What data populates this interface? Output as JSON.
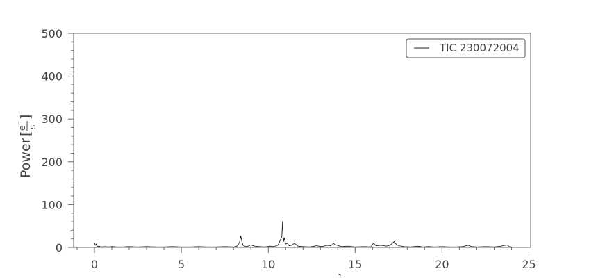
{
  "chart_data": {
    "type": "line",
    "title": "",
    "xlabel": "",
    "ylabel": "Power",
    "ylabel_unit": "e⁻/s",
    "xlim": [
      -1.2,
      25.1
    ],
    "ylim": [
      0,
      500
    ],
    "xticks": [
      0,
      5,
      10,
      15,
      20,
      25
    ],
    "yticks": [
      0,
      100,
      200,
      300,
      400,
      500
    ],
    "grid": false,
    "legend_position": "top-right",
    "series": [
      {
        "name": "TIC 230072004",
        "color": "#222222",
        "x": [
          0.0,
          0.05,
          0.1,
          0.15,
          0.25,
          0.4,
          0.6,
          0.8,
          1.0,
          1.3,
          1.6,
          2.0,
          2.5,
          3.0,
          3.5,
          4.0,
          4.5,
          5.0,
          5.5,
          6.0,
          6.5,
          7.0,
          7.5,
          8.0,
          8.2,
          8.35,
          8.42,
          8.48,
          8.55,
          8.7,
          8.85,
          9.0,
          9.2,
          9.5,
          9.8,
          10.1,
          10.3,
          10.5,
          10.6,
          10.7,
          10.78,
          10.82,
          10.85,
          10.88,
          10.92,
          11.0,
          11.1,
          11.2,
          11.35,
          11.5,
          11.7,
          12.0,
          12.4,
          12.8,
          13.0,
          13.2,
          13.4,
          13.6,
          13.75,
          13.9,
          14.2,
          14.6,
          15.0,
          15.5,
          15.9,
          16.05,
          16.2,
          16.5,
          16.8,
          17.0,
          17.15,
          17.25,
          17.35,
          17.5,
          17.8,
          18.2,
          18.6,
          18.9,
          19.2,
          19.6,
          20.0,
          20.4,
          20.8,
          21.2,
          21.5,
          21.7,
          22.0,
          22.5,
          23.0,
          23.4,
          23.75,
          23.85,
          24.0
        ],
        "y": [
          11,
          5,
          8,
          2,
          3,
          1,
          2,
          1,
          2,
          1,
          1,
          2,
          1,
          2,
          1,
          1,
          2,
          1,
          1,
          2,
          1,
          1,
          2,
          1,
          3,
          12,
          27,
          14,
          5,
          2,
          3,
          6,
          3,
          2,
          1,
          3,
          2,
          4,
          8,
          18,
          25,
          60,
          30,
          14,
          22,
          8,
          10,
          4,
          5,
          10,
          3,
          2,
          1,
          4,
          2,
          3,
          5,
          4,
          9,
          6,
          2,
          3,
          1,
          2,
          1,
          10,
          4,
          5,
          3,
          5,
          10,
          14,
          8,
          4,
          2,
          1,
          3,
          1,
          2,
          1,
          2,
          1,
          1,
          2,
          5,
          2,
          1,
          2,
          1,
          3,
          6,
          2,
          1
        ]
      }
    ]
  }
}
